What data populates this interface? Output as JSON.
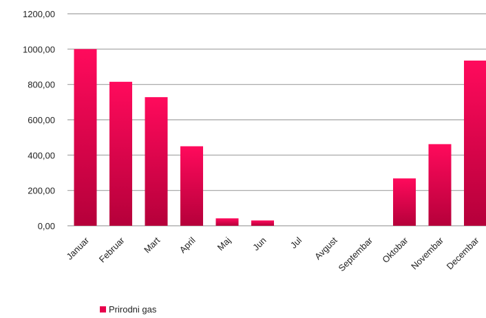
{
  "chart_data": {
    "type": "bar",
    "categories": [
      "Januar",
      "Februar",
      "Mart",
      "April",
      "Maj",
      "Jun",
      "Jul",
      "Avgust",
      "Septembar",
      "Oktobar",
      "Novembar",
      "Decembar"
    ],
    "series": [
      {
        "name": "Prirodni gas",
        "values": [
          1000,
          815,
          728,
          450,
          42,
          30,
          0,
          0,
          0,
          268,
          462,
          935
        ]
      }
    ],
    "ylim": [
      0,
      1200
    ],
    "yticks": [
      0,
      200,
      400,
      600,
      800,
      1000,
      1200
    ],
    "ytick_labels": [
      "0,00",
      "200,00",
      "400,00",
      "600,00",
      "800,00",
      "1000,00",
      "1200,00"
    ],
    "grid": true,
    "legend": "bottom-left",
    "colors": {
      "bar_top": "#ff0a5c",
      "bar_bottom": "#b5003a",
      "grid": "#a0a0a0",
      "legend_marker": "#e8004c"
    }
  }
}
